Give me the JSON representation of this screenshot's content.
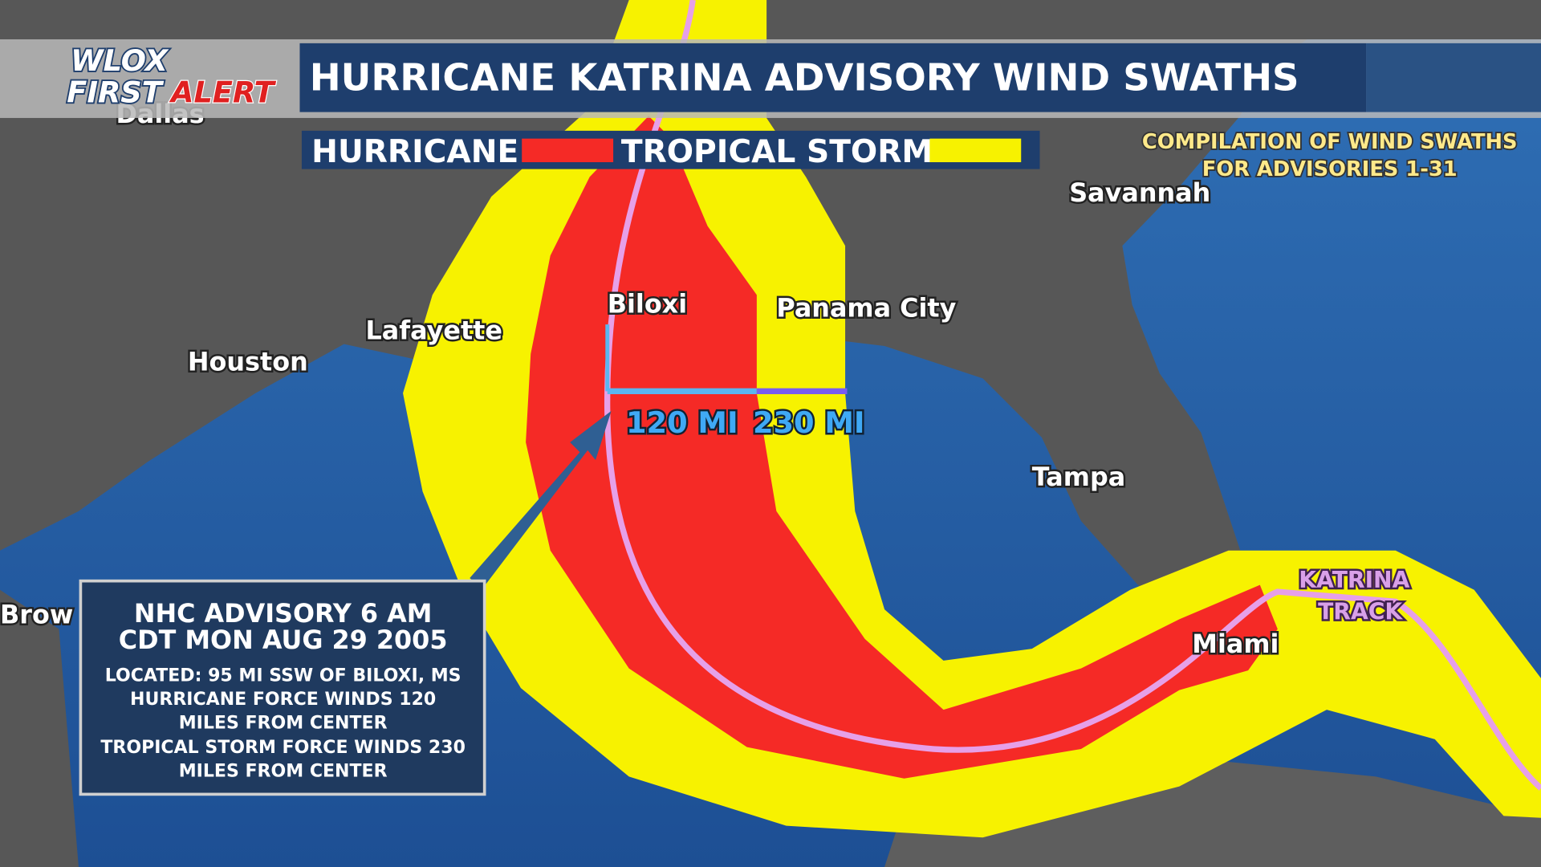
{
  "logo": {
    "top": "WLOX",
    "first": "FIRST",
    "alert": "ALERT"
  },
  "header": {
    "title": "HURRICANE KATRINA ADVISORY WIND SWATHS"
  },
  "legend": {
    "hurricane": "HURRICANE",
    "tropical_storm": "TROPICAL STORM"
  },
  "note": {
    "line1": "COMPILATION OF WIND SWATHS",
    "line2": "FOR ADVISORIES 1-31"
  },
  "cities": {
    "dallas": "Dallas",
    "savannah": "Savannah",
    "biloxi": "Biloxi",
    "panama_city": "Panama City",
    "lafayette": "Lafayette",
    "houston": "Houston",
    "tampa": "Tampa",
    "miami": "Miami",
    "brownsville": "Brow"
  },
  "radii": {
    "hurricane": "120 MI",
    "tropical_storm": "230 MI"
  },
  "track_label": {
    "line1": "KATRINA",
    "line2": "TRACK"
  },
  "advisory": {
    "title1": "NHC ADVISORY 6 AM",
    "title2": "CDT MON AUG 29 2005",
    "lines": [
      "LOCATED: 95 MI SSW OF BILOXI, MS",
      "HURRICANE FORCE WINDS 120",
      "MILES FROM CENTER",
      "TROPICAL STORM FORCE WINDS 230",
      "MILES FROM CENTER"
    ]
  }
}
